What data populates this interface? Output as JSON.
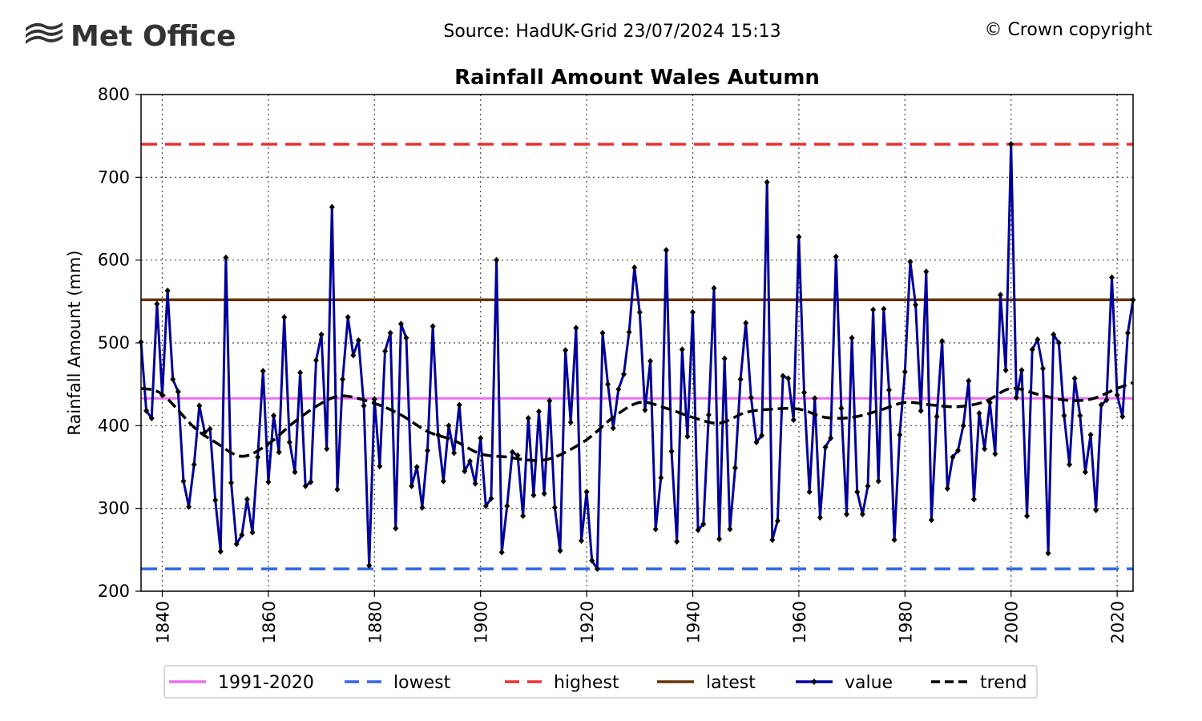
{
  "header": {
    "logo_text": "Met Office",
    "source": "Source: HadUK-Grid 23/07/2024 15:13",
    "copyright": "© Crown copyright"
  },
  "chart_data": {
    "type": "line",
    "title": "Rainfall Amount Wales Autumn",
    "xlabel": "",
    "ylabel": "Rainfall Amount (mm)",
    "xlim": [
      1836,
      2023
    ],
    "ylim": [
      200,
      800
    ],
    "x_ticks": [
      1840,
      1860,
      1880,
      1900,
      1920,
      1940,
      1960,
      1980,
      2000,
      2020
    ],
    "y_ticks": [
      200,
      300,
      400,
      500,
      600,
      700,
      800
    ],
    "grid": true,
    "legend_position": "bottom",
    "reference_lines": {
      "baseline_1991_2020": 433,
      "lowest": 227,
      "highest": 740,
      "latest": 552
    },
    "legend": [
      {
        "key": "baseline",
        "label": "1991-2020",
        "color": "#ef6fef",
        "style": "solid"
      },
      {
        "key": "lowest",
        "label": "lowest",
        "color": "#3366e6",
        "style": "dashed"
      },
      {
        "key": "highest",
        "label": "highest",
        "color": "#e63333",
        "style": "dashed"
      },
      {
        "key": "latest",
        "label": "latest",
        "color": "#663300",
        "style": "solid"
      },
      {
        "key": "value",
        "label": "value",
        "color": "#000099",
        "style": "marker"
      },
      {
        "key": "trend",
        "label": "trend",
        "color": "#000000",
        "style": "dashed"
      }
    ],
    "start_year": 1836,
    "values": [
      501,
      418,
      409,
      547,
      437,
      563,
      456,
      441,
      333,
      302,
      353,
      424,
      392,
      396,
      310,
      248,
      603,
      331,
      257,
      268,
      311,
      271,
      362,
      466,
      332,
      412,
      368,
      531,
      380,
      344,
      464,
      327,
      332,
      479,
      510,
      372,
      664,
      323,
      456,
      531,
      485,
      503,
      424,
      231,
      432,
      351,
      490,
      512,
      276,
      523,
      506,
      327,
      350,
      301,
      370,
      520,
      389,
      333,
      400,
      367,
      425,
      345,
      357,
      330,
      385,
      303,
      312,
      600,
      247,
      303,
      368,
      364,
      291,
      409,
      316,
      417,
      318,
      430,
      301,
      249,
      491,
      404,
      518,
      261,
      320,
      237,
      227,
      512,
      450,
      397,
      444,
      462,
      513,
      591,
      537,
      419,
      478,
      275,
      337,
      612,
      369,
      260,
      492,
      387,
      537,
      274,
      281,
      413,
      566,
      263,
      481,
      275,
      349,
      456,
      524,
      434,
      380,
      388,
      694,
      262,
      285,
      460,
      457,
      407,
      628,
      440,
      320,
      433,
      289,
      374,
      385,
      604,
      421,
      293,
      506,
      320,
      293,
      327,
      540,
      333,
      541,
      443,
      262,
      389,
      465,
      598,
      546,
      418,
      586,
      286,
      411,
      502,
      324,
      362,
      370,
      400,
      454,
      311,
      415,
      372,
      428,
      366,
      558,
      467,
      740,
      434,
      467,
      291,
      492,
      504,
      469,
      246,
      510,
      500,
      412,
      353,
      457,
      412,
      344,
      389,
      298,
      425,
      431,
      579,
      437,
      411,
      512,
      552
    ],
    "trend_points": [
      [
        1836,
        445
      ],
      [
        1840,
        438
      ],
      [
        1846,
        398
      ],
      [
        1850,
        380
      ],
      [
        1855,
        363
      ],
      [
        1860,
        378
      ],
      [
        1865,
        405
      ],
      [
        1870,
        427
      ],
      [
        1874,
        436
      ],
      [
        1880,
        427
      ],
      [
        1885,
        413
      ],
      [
        1890,
        393
      ],
      [
        1895,
        382
      ],
      [
        1900,
        366
      ],
      [
        1905,
        362
      ],
      [
        1910,
        358
      ],
      [
        1914,
        362
      ],
      [
        1920,
        383
      ],
      [
        1925,
        410
      ],
      [
        1930,
        428
      ],
      [
        1935,
        421
      ],
      [
        1940,
        410
      ],
      [
        1945,
        403
      ],
      [
        1950,
        416
      ],
      [
        1955,
        420
      ],
      [
        1960,
        420
      ],
      [
        1965,
        410
      ],
      [
        1970,
        410
      ],
      [
        1975,
        418
      ],
      [
        1980,
        428
      ],
      [
        1985,
        425
      ],
      [
        1990,
        423
      ],
      [
        1995,
        429
      ],
      [
        2000,
        445
      ],
      [
        2005,
        438
      ],
      [
        2010,
        431
      ],
      [
        2015,
        432
      ],
      [
        2020,
        445
      ],
      [
        2023,
        452
      ]
    ],
    "colors": {
      "value": "#000099",
      "trend": "#000000",
      "baseline": "#ef6fef",
      "lowest": "#3366e6",
      "highest": "#e63333",
      "latest": "#663300"
    }
  }
}
